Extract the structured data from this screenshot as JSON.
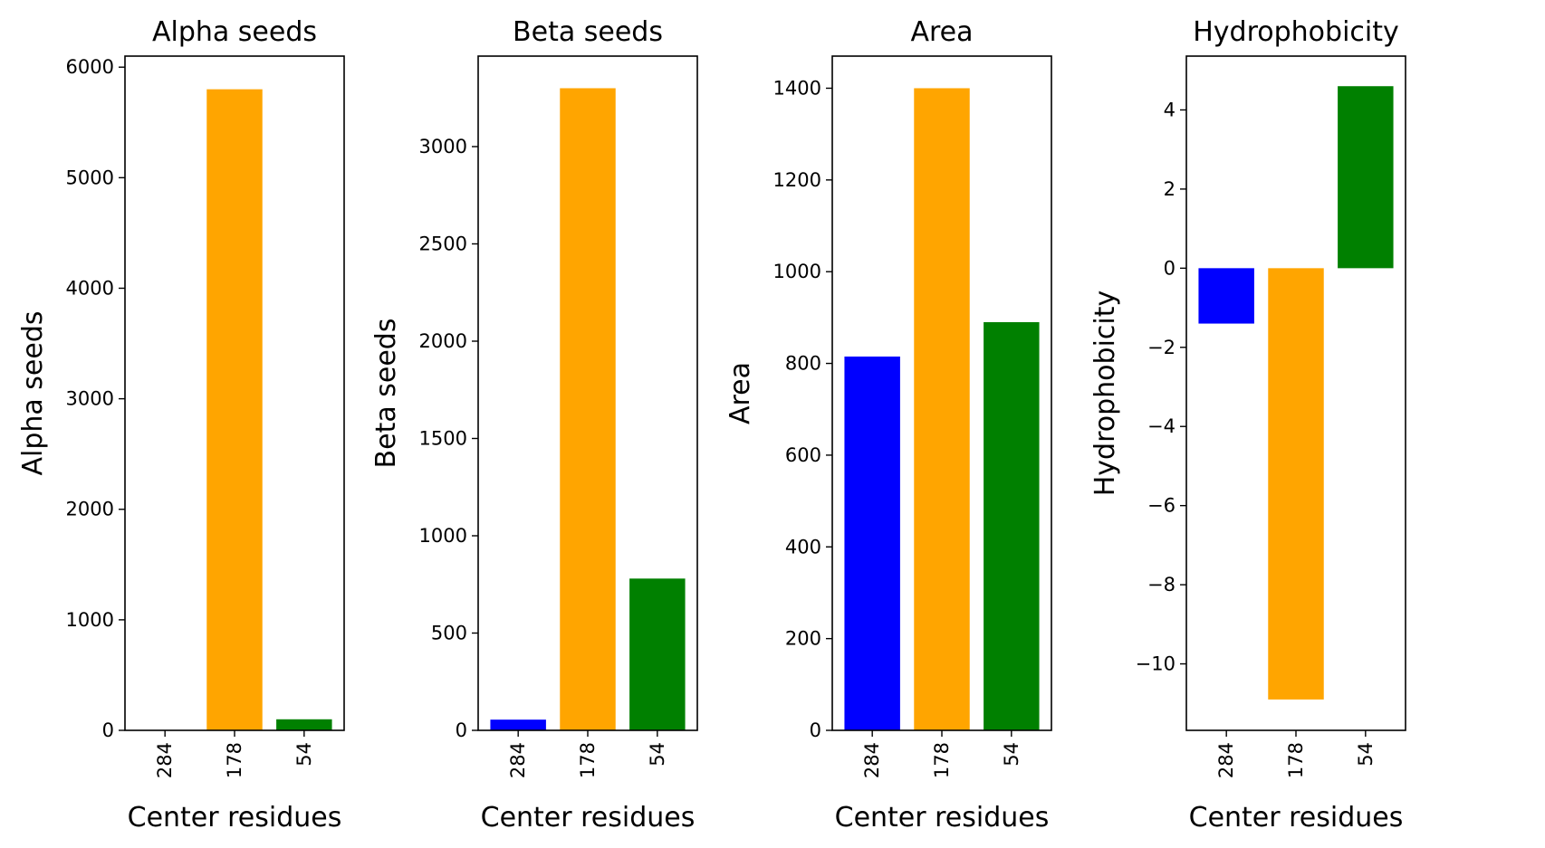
{
  "chart_data": [
    {
      "type": "bar",
      "title": "Alpha seeds",
      "xlabel": "Center residues",
      "ylabel": "Alpha seeds",
      "categories": [
        "284",
        "178",
        "54"
      ],
      "values": [
        0,
        5800,
        100
      ],
      "colors": [
        "#0000ff",
        "#ffa500",
        "#008000"
      ],
      "ylim": [
        0,
        6100
      ],
      "yticks": [
        0,
        1000,
        2000,
        3000,
        4000,
        5000,
        6000
      ],
      "ytick_labels": [
        "0",
        "1000",
        "2000",
        "3000",
        "4000",
        "5000",
        "6000"
      ]
    },
    {
      "type": "bar",
      "title": "Beta seeds",
      "xlabel": "Center residues",
      "ylabel": "Beta seeds",
      "categories": [
        "284",
        "178",
        "54"
      ],
      "values": [
        55,
        3300,
        780
      ],
      "colors": [
        "#0000ff",
        "#ffa500",
        "#008000"
      ],
      "ylim": [
        0,
        3465
      ],
      "yticks": [
        0,
        500,
        1000,
        1500,
        2000,
        2500,
        3000
      ],
      "ytick_labels": [
        "0",
        "500",
        "1000",
        "1500",
        "2000",
        "2500",
        "3000"
      ]
    },
    {
      "type": "bar",
      "title": "Area",
      "xlabel": "Center residues",
      "ylabel": "Area",
      "categories": [
        "284",
        "178",
        "54"
      ],
      "values": [
        815,
        1400,
        890
      ],
      "colors": [
        "#0000ff",
        "#ffa500",
        "#008000"
      ],
      "ylim": [
        0,
        1470
      ],
      "yticks": [
        0,
        200,
        400,
        600,
        800,
        1000,
        1200,
        1400
      ],
      "ytick_labels": [
        "0",
        "200",
        "400",
        "600",
        "800",
        "1000",
        "1200",
        "1400"
      ]
    },
    {
      "type": "bar",
      "title": "Hydrophobicity",
      "xlabel": "Center residues",
      "ylabel": "Hydrophobicity",
      "categories": [
        "284",
        "178",
        "54"
      ],
      "values": [
        -1.4,
        -10.9,
        4.6
      ],
      "colors": [
        "#0000ff",
        "#ffa500",
        "#008000"
      ],
      "ylim": [
        -11.68,
        5.36
      ],
      "yticks": [
        -10,
        -8,
        -6,
        -4,
        -2,
        0,
        2,
        4
      ],
      "ytick_labels": [
        "−10",
        "−8",
        "−6",
        "−4",
        "−2",
        "0",
        "2",
        "4"
      ]
    }
  ]
}
